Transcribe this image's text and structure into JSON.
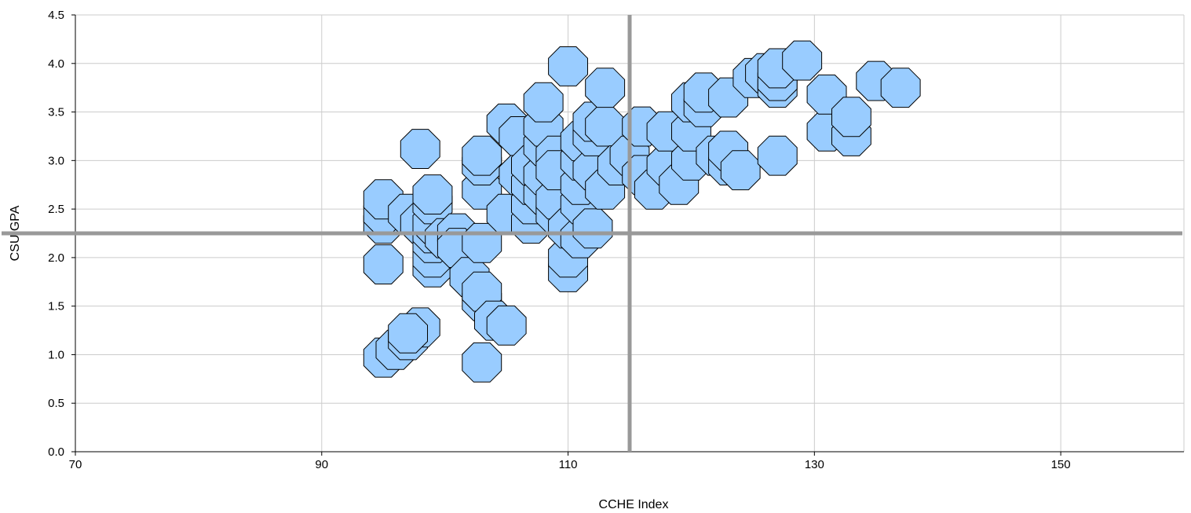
{
  "chart_data": {
    "type": "scatter",
    "title": "",
    "xlabel": "CCHE Index",
    "ylabel": "CSU GPA",
    "xlim": [
      70,
      160
    ],
    "ylim": [
      0,
      4.5
    ],
    "x_ticks": [
      70,
      90,
      110,
      130,
      150
    ],
    "y_ticks": [
      0.0,
      0.5,
      1.0,
      1.5,
      2.0,
      2.5,
      3.0,
      3.5,
      4.0,
      4.5
    ],
    "grid": true,
    "marker_color": "#99ccff",
    "marker_edge_color": "#000000",
    "reference_line_color": "#999999",
    "reference_lines": {
      "x": 115,
      "y": 2.25
    },
    "points": [
      [
        95,
        0.97
      ],
      [
        96,
        1.05
      ],
      [
        97,
        1.15
      ],
      [
        98,
        1.28
      ],
      [
        97,
        1.22
      ],
      [
        95,
        1.93
      ],
      [
        95,
        2.35
      ],
      [
        95,
        2.45
      ],
      [
        95,
        2.6
      ],
      [
        97,
        2.45
      ],
      [
        98,
        2.35
      ],
      [
        98,
        3.12
      ],
      [
        99,
        1.9
      ],
      [
        99,
        2.0
      ],
      [
        99,
        2.15
      ],
      [
        99,
        2.25
      ],
      [
        99,
        2.35
      ],
      [
        99,
        2.55
      ],
      [
        99,
        2.65
      ],
      [
        100,
        2.2
      ],
      [
        101,
        2.25
      ],
      [
        101,
        2.1
      ],
      [
        102,
        1.8
      ],
      [
        103,
        0.92
      ],
      [
        103,
        1.55
      ],
      [
        103,
        1.65
      ],
      [
        103,
        2.15
      ],
      [
        103,
        2.7
      ],
      [
        103,
        2.95
      ],
      [
        103,
        3.05
      ],
      [
        104,
        1.35
      ],
      [
        105,
        1.3
      ],
      [
        105,
        2.45
      ],
      [
        105,
        3.38
      ],
      [
        106,
        3.25
      ],
      [
        106,
        2.85
      ],
      [
        107,
        2.35
      ],
      [
        107,
        2.55
      ],
      [
        107,
        2.75
      ],
      [
        107,
        2.95
      ],
      [
        108,
        2.65
      ],
      [
        108,
        2.85
      ],
      [
        108,
        3.15
      ],
      [
        108,
        3.35
      ],
      [
        108,
        3.6
      ],
      [
        109,
        2.45
      ],
      [
        109,
        2.6
      ],
      [
        109,
        3.05
      ],
      [
        109,
        2.9
      ],
      [
        110,
        1.85
      ],
      [
        110,
        2.0
      ],
      [
        110,
        2.3
      ],
      [
        110,
        3.97
      ],
      [
        111,
        2.2
      ],
      [
        111,
        2.55
      ],
      [
        111,
        2.75
      ],
      [
        111,
        3.0
      ],
      [
        111,
        3.2
      ],
      [
        112,
        2.3
      ],
      [
        112,
        2.9
      ],
      [
        112,
        3.25
      ],
      [
        112,
        3.4
      ],
      [
        113,
        2.7
      ],
      [
        113,
        3.35
      ],
      [
        113,
        3.75
      ],
      [
        114,
        2.95
      ],
      [
        115,
        3.05
      ],
      [
        116,
        2.85
      ],
      [
        116,
        3.35
      ],
      [
        117,
        2.7
      ],
      [
        118,
        2.95
      ],
      [
        118,
        3.3
      ],
      [
        119,
        2.75
      ],
      [
        120,
        3.0
      ],
      [
        120,
        3.3
      ],
      [
        120,
        3.6
      ],
      [
        121,
        3.55
      ],
      [
        121,
        3.7
      ],
      [
        122,
        3.05
      ],
      [
        123,
        2.95
      ],
      [
        123,
        3.1
      ],
      [
        123,
        3.65
      ],
      [
        124,
        2.9
      ],
      [
        125,
        3.85
      ],
      [
        126,
        3.9
      ],
      [
        127,
        3.05
      ],
      [
        127,
        3.75
      ],
      [
        127,
        3.82
      ],
      [
        127,
        3.95
      ],
      [
        129,
        4.03
      ],
      [
        131,
        3.3
      ],
      [
        131,
        3.68
      ],
      [
        133,
        3.25
      ],
      [
        133,
        3.45
      ],
      [
        135,
        3.82
      ],
      [
        137,
        3.75
      ]
    ]
  }
}
